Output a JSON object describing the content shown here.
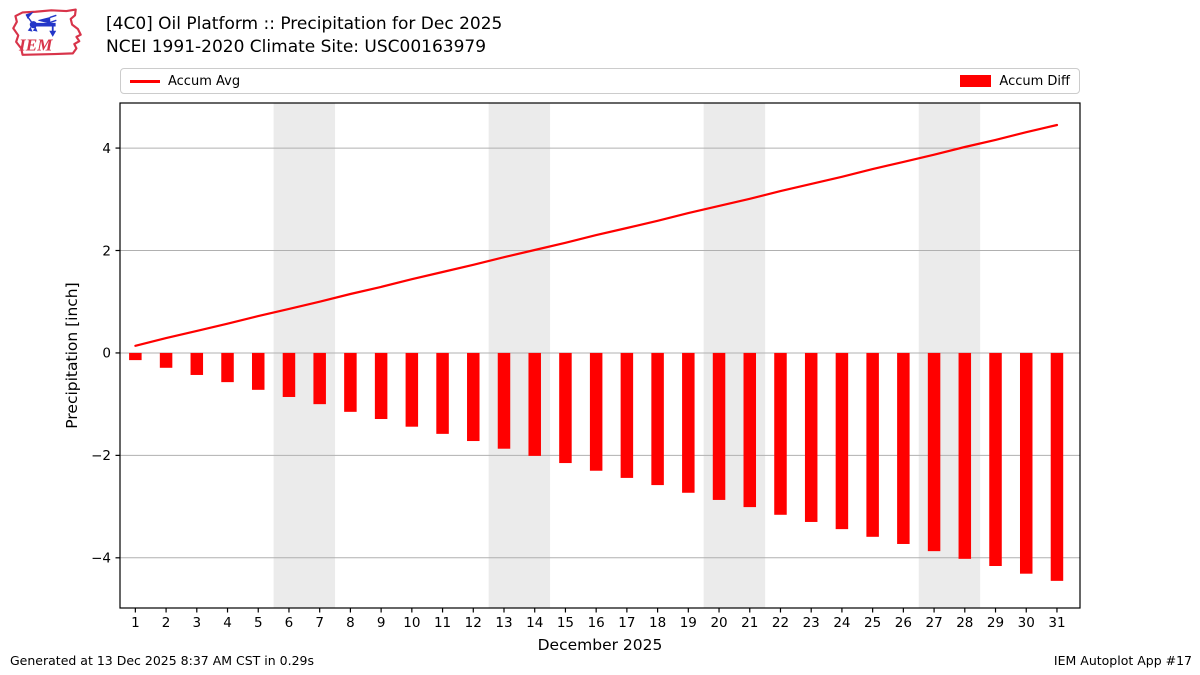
{
  "header": {
    "title_line1": "[4C0] Oil Platform :: Precipitation for Dec 2025",
    "title_line2": "NCEI 1991-2020 Climate Site: USC00163979",
    "logo_text": "IEM"
  },
  "legend": {
    "avg_label": "Accum Avg",
    "diff_label": "Accum Diff"
  },
  "footer": {
    "generated": "Generated at 13 Dec 2025 8:37 AM CST in 0.29s",
    "app": "IEM Autoplot App #17"
  },
  "colors": {
    "series_red": "#ff0000",
    "weekend_band": "#ebebeb",
    "gridline": "#b0b0b0",
    "axis": "#000000",
    "logo_red": "#d8344a",
    "logo_blue": "#2336c8"
  },
  "chart_data": {
    "type": "bar",
    "title": "[4C0] Oil Platform :: Precipitation for Dec 2025",
    "subtitle": "NCEI 1991-2020 Climate Site: USC00163979",
    "xlabel": "December 2025",
    "ylabel": "Precipitation [inch]",
    "x": [
      1,
      2,
      3,
      4,
      5,
      6,
      7,
      8,
      9,
      10,
      11,
      12,
      13,
      14,
      15,
      16,
      17,
      18,
      19,
      20,
      21,
      22,
      23,
      24,
      25,
      26,
      27,
      28,
      29,
      30,
      31
    ],
    "series": [
      {
        "name": "Accum Avg",
        "kind": "line",
        "color": "#ff0000",
        "values": [
          0.14,
          0.29,
          0.43,
          0.57,
          0.72,
          0.86,
          1.0,
          1.15,
          1.29,
          1.44,
          1.58,
          1.72,
          1.87,
          2.01,
          2.15,
          2.3,
          2.44,
          2.58,
          2.73,
          2.87,
          3.01,
          3.16,
          3.3,
          3.44,
          3.59,
          3.73,
          3.87,
          4.02,
          4.16,
          4.31,
          4.45
        ]
      },
      {
        "name": "Accum Diff",
        "kind": "bar",
        "color": "#ff0000",
        "values": [
          -0.14,
          -0.29,
          -0.43,
          -0.57,
          -0.72,
          -0.86,
          -1.0,
          -1.15,
          -1.29,
          -1.44,
          -1.58,
          -1.72,
          -1.87,
          -2.01,
          -2.15,
          -2.3,
          -2.44,
          -2.58,
          -2.73,
          -2.87,
          -3.01,
          -3.16,
          -3.3,
          -3.44,
          -3.59,
          -3.73,
          -3.87,
          -4.02,
          -4.16,
          -4.31,
          -4.45
        ]
      }
    ],
    "xlim": [
      0.5,
      31.75
    ],
    "ylim": [
      -4.98,
      4.88
    ],
    "yticks": [
      -4,
      -2,
      0,
      2,
      4
    ],
    "xticks": [
      1,
      2,
      3,
      4,
      5,
      6,
      7,
      8,
      9,
      10,
      11,
      12,
      13,
      14,
      15,
      16,
      17,
      18,
      19,
      20,
      21,
      22,
      23,
      24,
      25,
      26,
      27,
      28,
      29,
      30,
      31
    ],
    "weekend_bands": [
      [
        5.5,
        7.5
      ],
      [
        12.5,
        14.5
      ],
      [
        19.5,
        21.5
      ],
      [
        26.5,
        28.5
      ]
    ],
    "grid": true,
    "legend_position": "top"
  }
}
